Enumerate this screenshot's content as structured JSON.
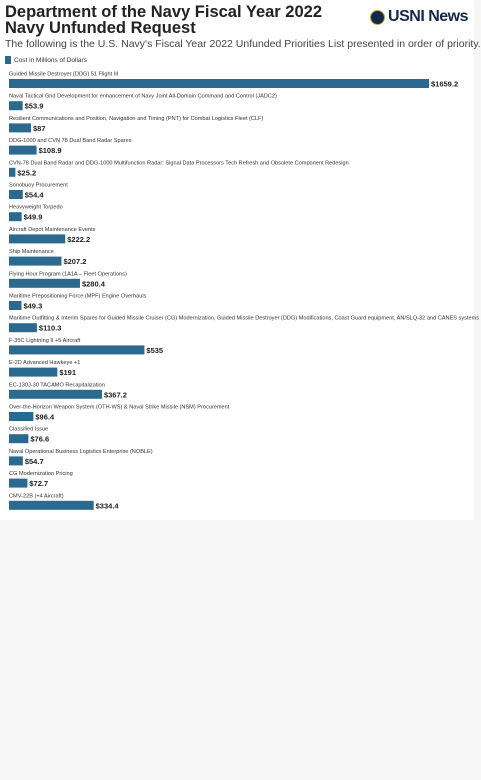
{
  "header": {
    "title": "Department of the Navy Fiscal Year 2022 Navy Unfunded Request",
    "subtitle": "The following is the U.S. Navy's Fiscal Year 2022 Unfunded Priorities List presented in order of priority.",
    "brand": "USNI News"
  },
  "legend": {
    "label": "Cost in Millions of Dollars"
  },
  "colors": {
    "bar": "#2b6a8e",
    "brand": "#13294b"
  },
  "chart_data": {
    "type": "bar",
    "orientation": "horizontal",
    "title": "Department of the Navy Fiscal Year 2022 Navy Unfunded Request",
    "subtitle": "The following is the U.S. Navy's Fiscal Year 2022 Unfunded Priorities List presented in order of priority.",
    "legend": [
      "Cost in Millions of Dollars"
    ],
    "legend_position": "top-left",
    "value_prefix": "$",
    "xlim": [
      0,
      1659.2
    ],
    "grid": false,
    "categories": [
      "Guided Missile Destroyer (DDG) 51 Flight III",
      "Naval Tactical Grid Development for enhancement of Navy Joint All-Domain Command and Control (JADC2)",
      "Resilient Communications and Position, Navigation and Timing (PNT) for Combat Logistics Fleet (CLF)",
      "DDG-1000 and CVN 78 Dual Band Radar Spares",
      "CVN-78 Dual Band Radar and DDG-1000 Multifunction Radar: Signal Data Processors Tech Refresh and Obsolete Component Redesign",
      "Sonobuoy Procurement",
      "Heavyweight Torpedo",
      "Aircraft Depot Maintenance Events",
      "Ship Maintenance",
      "Flying Hour Program (1A1A – Fleet Operations)",
      "Maritime Prepositioning Force (MPF) Engine Overhauls",
      "Maritime Outfitting & Interim Spares for Guided Missile Cruiser (CG) Modernization, Guided Missile Destroyer (DDG) Modifications, Coast Guard equipment, AN/SLQ-32 and CANES systems",
      "F-35C Lightning II +5 Aircraft",
      "E-2D Advanced Hawkeye +1",
      "EC-130J-30 TACAMO Recapitalization",
      "Over-the-Horizon Weapon System (OTH-WS) & Naval Strike Missile (NSM) Procurement",
      "Classified Issue",
      "Naval Operational Business Logistics Enterprise (NOBLE)",
      "CG Modernization Pricing",
      "CMV-22B (+4 Aircraft)"
    ],
    "series": [
      {
        "name": "Cost in Millions of Dollars",
        "values": [
          1659.2,
          53.9,
          87,
          108.9,
          25.2,
          54.4,
          49.9,
          222.2,
          207.2,
          280.4,
          49.3,
          110.3,
          535,
          191,
          367.2,
          96.4,
          76.6,
          54.7,
          72.7,
          334.4
        ]
      }
    ],
    "value_labels": [
      "$1659.2",
      "$53.9",
      "$87",
      "$108.9",
      "$25.2",
      "$54.4",
      "$49.9",
      "$222.2",
      "$207.2",
      "$280.4",
      "$49.3",
      "$110.3",
      "$535",
      "$191",
      "$367.2",
      "$96.4",
      "$76.6",
      "$54.7",
      "$72.7",
      "$334.4"
    ]
  }
}
